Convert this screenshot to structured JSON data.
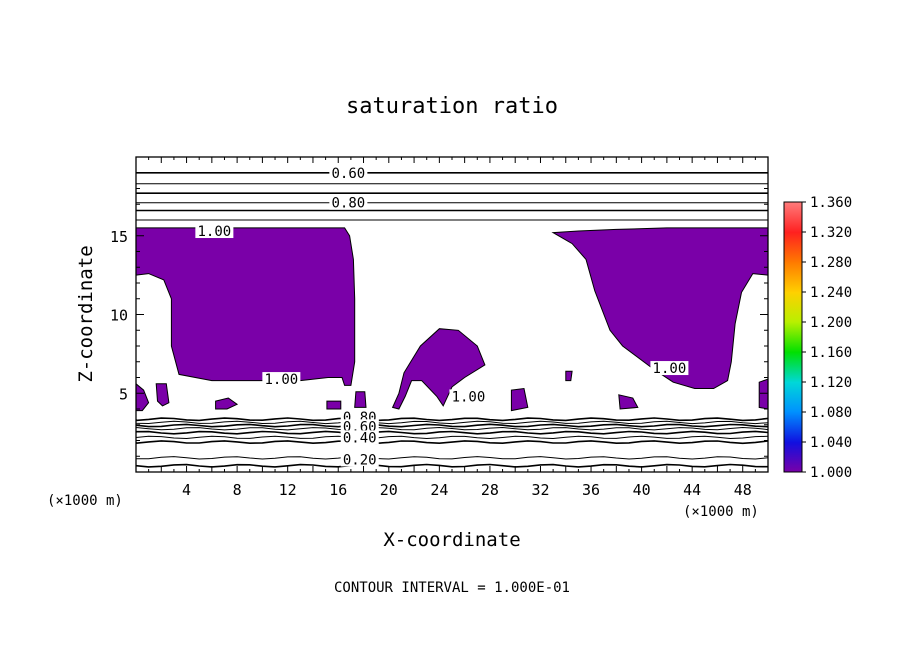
{
  "chart_data": {
    "type": "contour",
    "title": "saturation ratio",
    "xlabel": "X-coordinate",
    "ylabel": "Z-coordinate",
    "x_unit_left": "(×1000 m)",
    "x_unit_right": "(×1000 m)",
    "footer": "CONTOUR INTERVAL = 1.000E-01",
    "xlim": [
      0,
      50
    ],
    "ylim": [
      0,
      20
    ],
    "x_ticks": [
      {
        "value": 4,
        "label": "4"
      },
      {
        "value": 8,
        "label": "8"
      },
      {
        "value": 12,
        "label": "12"
      },
      {
        "value": 16,
        "label": "16"
      },
      {
        "value": 20,
        "label": "20"
      },
      {
        "value": 24,
        "label": "24"
      },
      {
        "value": 28,
        "label": "28"
      },
      {
        "value": 32,
        "label": "32"
      },
      {
        "value": 36,
        "label": "36"
      },
      {
        "value": 40,
        "label": "40"
      },
      {
        "value": 44,
        "label": "44"
      },
      {
        "value": 48,
        "label": "48"
      }
    ],
    "y_ticks": [
      {
        "value": 5,
        "label": "5"
      },
      {
        "value": 10,
        "label": "10"
      },
      {
        "value": 15,
        "label": "15"
      }
    ],
    "contour_interval": 0.1,
    "fill_threshold": 1.0,
    "fill_color": "#7a00a8",
    "horizontal_contours_z": [
      0.4,
      0.9,
      1.9,
      2.2,
      2.5,
      2.75,
      2.95,
      3.15,
      3.35,
      16.0,
      16.6,
      17.1,
      17.7,
      18.3,
      19.0
    ],
    "contour_labels": [
      {
        "text": "0.60",
        "x": 16.8,
        "z": 19.0
      },
      {
        "text": "0.80",
        "x": 16.8,
        "z": 17.1
      },
      {
        "text": "1.00",
        "x": 6.2,
        "z": 15.3
      },
      {
        "text": "1.00",
        "x": 11.5,
        "z": 5.9
      },
      {
        "text": "1.00",
        "x": 26.3,
        "z": 4.8
      },
      {
        "text": "1.00",
        "x": 42.2,
        "z": 6.6
      },
      {
        "text": "0.80",
        "x": 17.7,
        "z": 3.5
      },
      {
        "text": "0.60",
        "x": 17.7,
        "z": 2.9
      },
      {
        "text": "0.40",
        "x": 17.7,
        "z": 2.2
      },
      {
        "text": "0.20",
        "x": 17.7,
        "z": 0.8
      }
    ],
    "supersaturated_regions": [
      [
        [
          0,
          15.5
        ],
        [
          14,
          15.5
        ],
        [
          16.5,
          15.5
        ],
        [
          16.9,
          15
        ],
        [
          17.2,
          13.5
        ],
        [
          17.3,
          11
        ],
        [
          17.3,
          7
        ],
        [
          17,
          5.5
        ],
        [
          16.5,
          5.5
        ],
        [
          16.3,
          6
        ],
        [
          15.2,
          6
        ],
        [
          13,
          5.8
        ],
        [
          10,
          5.8
        ],
        [
          6,
          5.8
        ],
        [
          3.4,
          6.2
        ],
        [
          2.8,
          8
        ],
        [
          2.8,
          11
        ],
        [
          2.2,
          12.2
        ],
        [
          1,
          12.6
        ],
        [
          0,
          12.5
        ]
      ],
      [
        [
          33,
          15.2
        ],
        [
          35,
          15.3
        ],
        [
          38,
          15.4
        ],
        [
          42,
          15.5
        ],
        [
          45,
          15.5
        ],
        [
          48,
          15.5
        ],
        [
          50,
          15.5
        ],
        [
          50,
          12.5
        ],
        [
          48.8,
          12.6
        ],
        [
          47.9,
          11.4
        ],
        [
          47.4,
          9.4
        ],
        [
          47.1,
          7
        ],
        [
          46.8,
          5.8
        ],
        [
          45.7,
          5.3
        ],
        [
          44.2,
          5.3
        ],
        [
          42.5,
          5.7
        ],
        [
          41,
          6.5
        ],
        [
          38.5,
          8
        ],
        [
          37.5,
          9
        ],
        [
          36.3,
          11.5
        ],
        [
          35.6,
          13.5
        ],
        [
          34.5,
          14.5
        ]
      ],
      [
        [
          20.8,
          5
        ],
        [
          21.2,
          6.3
        ],
        [
          22.5,
          8
        ],
        [
          24,
          9.1
        ],
        [
          25.5,
          9
        ],
        [
          27,
          8
        ],
        [
          27.6,
          6.8
        ],
        [
          26,
          6
        ],
        [
          25,
          5.4
        ],
        [
          24.3,
          4.2
        ],
        [
          23.8,
          4.8
        ],
        [
          22.6,
          5.8
        ],
        [
          21.8,
          5.8
        ],
        [
          21.3,
          4.8
        ],
        [
          20.8,
          4
        ],
        [
          20.3,
          4.1
        ]
      ],
      [
        [
          0,
          5.6
        ],
        [
          0.6,
          5.2
        ],
        [
          1,
          4.4
        ],
        [
          0.5,
          3.9
        ],
        [
          0,
          3.9
        ]
      ],
      [
        [
          1.6,
          5.6
        ],
        [
          2.4,
          5.6
        ],
        [
          2.6,
          4.4
        ],
        [
          2.1,
          4.2
        ],
        [
          1.7,
          4.5
        ]
      ],
      [
        [
          6.3,
          4.5
        ],
        [
          7.3,
          4.7
        ],
        [
          8,
          4.3
        ],
        [
          7.2,
          4.0
        ],
        [
          6.3,
          4.0
        ]
      ],
      [
        [
          15.1,
          4.5
        ],
        [
          16.2,
          4.5
        ],
        [
          16.2,
          4.0
        ],
        [
          15.1,
          4.0
        ]
      ],
      [
        [
          17.4,
          5.1
        ],
        [
          18.1,
          5.1
        ],
        [
          18.2,
          4.1
        ],
        [
          17.3,
          4.1
        ]
      ],
      [
        [
          29.7,
          5.2
        ],
        [
          30.7,
          5.3
        ],
        [
          31,
          4.1
        ],
        [
          29.7,
          3.9
        ]
      ],
      [
        [
          38.2,
          4.9
        ],
        [
          39.3,
          4.7
        ],
        [
          39.7,
          4.1
        ],
        [
          38.3,
          4.0
        ]
      ],
      [
        [
          34.0,
          6.4
        ],
        [
          34.5,
          6.4
        ],
        [
          34.4,
          5.8
        ],
        [
          34.0,
          5.8
        ]
      ],
      [
        [
          49.3,
          5.7
        ],
        [
          50,
          5.9
        ],
        [
          50,
          4.0
        ],
        [
          49.3,
          4.1
        ]
      ]
    ]
  },
  "colorbar": {
    "labels": [
      "1.360",
      "1.320",
      "1.280",
      "1.240",
      "1.200",
      "1.160",
      "1.120",
      "1.080",
      "1.040",
      "1.000"
    ]
  }
}
